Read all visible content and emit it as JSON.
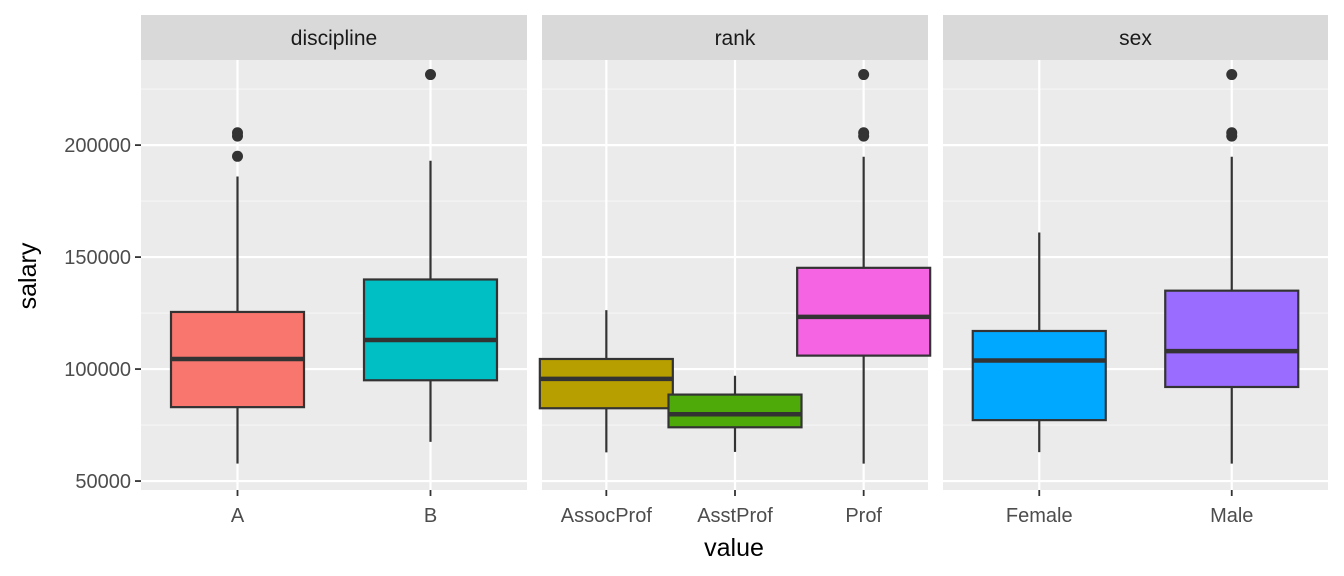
{
  "chart_data": {
    "type": "boxplot",
    "facet_by": "variable",
    "xlabel": "value",
    "ylabel": "salary",
    "ylim": [
      46000,
      238000
    ],
    "yticks": [
      50000,
      100000,
      150000,
      200000
    ],
    "ytick_labels": [
      "50000",
      "100000",
      "150000",
      "200000"
    ],
    "grid": true,
    "legend": "none",
    "panels": [
      {
        "strip": "discipline",
        "boxes": [
          {
            "category": "A",
            "color": "#F8766D",
            "lower_whisker": 57800,
            "q1": 83000,
            "median": 104500,
            "q3": 125500,
            "upper_whisker": 186000,
            "outliers": [
              195000,
              204000,
              205500
            ]
          },
          {
            "category": "B",
            "color": "#00BFC4",
            "lower_whisker": 67500,
            "q1": 95000,
            "median": 113000,
            "q3": 140000,
            "upper_whisker": 193000,
            "outliers": [
              231500
            ]
          }
        ]
      },
      {
        "strip": "rank",
        "boxes": [
          {
            "category": "AssocProf",
            "color": "#B79F00",
            "lower_whisker": 62800,
            "q1": 82500,
            "median": 95600,
            "q3": 104500,
            "upper_whisker": 126300,
            "outliers": []
          },
          {
            "category": "AsstProf",
            "color": "#4DAA08",
            "lower_whisker": 63000,
            "q1": 74000,
            "median": 79800,
            "q3": 88600,
            "upper_whisker": 97000,
            "outliers": []
          },
          {
            "category": "Prof",
            "color": "#F564E3",
            "lower_whisker": 57800,
            "q1": 106000,
            "median": 123300,
            "q3": 145200,
            "upper_whisker": 194800,
            "outliers": [
              204000,
              205500,
              231500
            ]
          }
        ]
      },
      {
        "strip": "sex",
        "boxes": [
          {
            "category": "Female",
            "color": "#00A9FF",
            "lower_whisker": 62900,
            "q1": 77200,
            "median": 103800,
            "q3": 117000,
            "upper_whisker": 161000,
            "outliers": []
          },
          {
            "category": "Male",
            "color": "#9A6CFF",
            "lower_whisker": 57800,
            "q1": 92000,
            "median": 108000,
            "q3": 135000,
            "upper_whisker": 194800,
            "outliers": [
              204000,
              205500,
              231500
            ]
          }
        ]
      }
    ]
  }
}
